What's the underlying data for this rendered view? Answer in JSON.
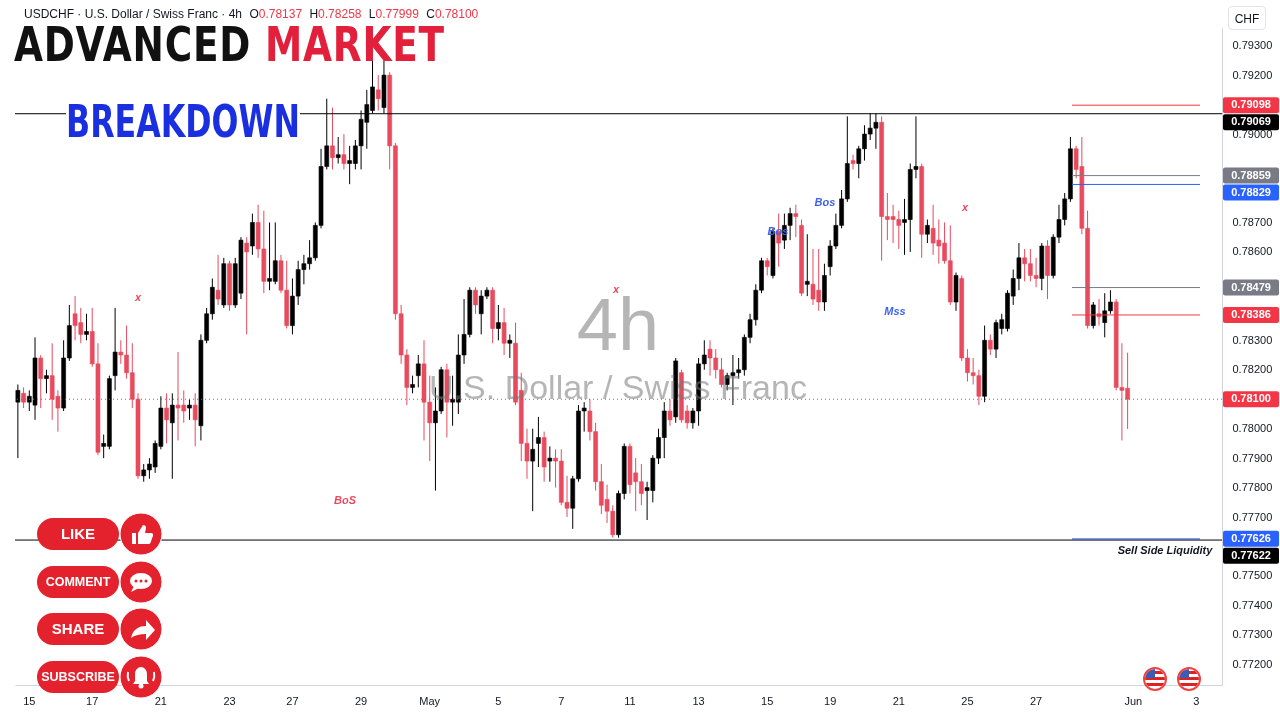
{
  "chart_data": {
    "type": "candlestick",
    "title": "ADVANCED MARKET BREAKDOWN",
    "subtitle": "USDCHF · U.S. Dollar / Swiss Franc · 4h",
    "ylabel": "CHF",
    "annotations": [
      "O0.78137 H0.78258 L0.77999 C0.78100",
      "4h",
      "U.S. Dollar / Swiss Franc",
      "LIKE",
      "COMMENT",
      "SHARE",
      "SUBSCRIBE",
      "BoS",
      "Mss",
      "Bos",
      "Bos",
      "Sell Side Liquidity",
      "x",
      "x",
      "x"
    ],
    "categories": [
      null,
      null,
      "15",
      null,
      null,
      null,
      null,
      null,
      null,
      null,
      null,
      null,
      null,
      "17",
      null,
      null,
      null,
      null,
      null,
      null,
      null,
      null,
      null,
      null,
      null,
      "21",
      null,
      null,
      null,
      null,
      null,
      null,
      null,
      null,
      null,
      null,
      null,
      "23",
      null,
      null,
      null,
      null,
      null,
      null,
      null,
      null,
      null,
      null,
      "27",
      null,
      null,
      null,
      null,
      null,
      null,
      null,
      null,
      null,
      null,
      null,
      "29",
      null,
      null,
      null,
      null,
      null,
      null,
      null,
      null,
      null,
      null,
      null,
      "May",
      null,
      null,
      null,
      null,
      null,
      null,
      null,
      null,
      null,
      null,
      null,
      "5",
      null,
      null,
      null,
      null,
      null,
      null,
      null,
      null,
      null,
      null,
      "7",
      null,
      null,
      null,
      null,
      null,
      null,
      null,
      null,
      null,
      null,
      null,
      "11",
      null,
      null,
      null,
      null,
      null,
      null,
      null,
      null,
      null,
      null,
      null,
      "13",
      null,
      null,
      null,
      null,
      null,
      null,
      null,
      null,
      null,
      null,
      null,
      "15",
      null,
      null,
      null,
      null,
      null,
      null,
      null,
      null,
      null,
      null,
      "19",
      null,
      null,
      null,
      null,
      null,
      null,
      null,
      null,
      null,
      null,
      null,
      "21",
      null,
      null,
      null,
      null,
      null,
      null,
      null,
      null,
      null,
      null,
      null,
      "25",
      null,
      null,
      null,
      null,
      null,
      null,
      null,
      null,
      null,
      null,
      null,
      "27",
      null,
      null,
      null,
      null,
      null,
      null,
      null,
      null,
      null,
      null,
      null,
      null,
      null,
      null,
      null,
      null,
      "Jun",
      null,
      null,
      null,
      null,
      null,
      null,
      null,
      null,
      null,
      null,
      "3",
      null,
      null,
      null,
      null
    ],
    "ylim": [
      0.7713,
      0.7936
    ],
    "yticks": [
      {
        "value": 0.772,
        "label": "0.77200"
      },
      {
        "value": 0.773,
        "label": "0.77300"
      },
      {
        "value": 0.774,
        "label": "0.77400"
      },
      {
        "value": 0.775,
        "label": "0.77500"
      },
      {
        "value": 0.777,
        "label": "0.77700"
      },
      {
        "value": 0.778,
        "label": "0.77800"
      },
      {
        "value": 0.779,
        "label": "0.77900"
      },
      {
        "value": 0.78,
        "label": "0.78000"
      },
      {
        "value": 0.782,
        "label": "0.78200"
      },
      {
        "value": 0.783,
        "label": "0.78300"
      },
      {
        "value": 0.786,
        "label": "0.78600"
      },
      {
        "value": 0.787,
        "label": "0.78700"
      },
      {
        "value": 0.79,
        "label": "0.79000"
      },
      {
        "value": 0.792,
        "label": "0.79200"
      },
      {
        "value": 0.793,
        "label": "0.79300"
      }
    ],
    "ref_lines": [
      {
        "axis": "y",
        "value": 0.79098,
        "label": "0.79098",
        "color": "#f23645"
      },
      {
        "axis": "y",
        "value": 0.79069,
        "label": "0.79069",
        "color": "#000000",
        "line_style": "solid"
      },
      {
        "axis": "y",
        "value": 0.78859,
        "label": "0.78859",
        "color": "#787b86"
      },
      {
        "axis": "y",
        "value": 0.78829,
        "label": "0.78829",
        "color": "#2962ff"
      },
      {
        "axis": "y",
        "value": 0.78479,
        "label": "0.78479",
        "color": "#787b86"
      },
      {
        "axis": "y",
        "value": 0.78386,
        "label": "0.78386",
        "color": "#f23645"
      },
      {
        "axis": "y",
        "value": 0.781,
        "label": "0.78100",
        "color": "#f23645",
        "line_style": "dotted"
      },
      {
        "axis": "y",
        "value": 0.77626,
        "label": "0.77626",
        "color": "#2962ff"
      },
      {
        "axis": "y",
        "value": 0.77622,
        "label": "0.77622",
        "color": "#000000",
        "line_style": "solid"
      }
    ],
    "ohlc": [
      [
        0.7809,
        0.7815,
        0.779,
        0.7813
      ],
      [
        0.7812,
        0.7814,
        0.7807,
        0.7809
      ],
      [
        0.7809,
        0.7813,
        0.7806,
        0.7811
      ],
      [
        0.7808,
        0.7831,
        0.7803,
        0.7824
      ],
      [
        0.7824,
        0.7825,
        0.7807,
        0.7817
      ],
      [
        0.7817,
        0.782,
        0.7812,
        0.7818
      ],
      [
        0.7818,
        0.7829,
        0.7803,
        0.781
      ],
      [
        0.7811,
        0.7813,
        0.7799,
        0.7807
      ],
      [
        0.7807,
        0.783,
        0.7806,
        0.7824
      ],
      [
        0.7824,
        0.7842,
        0.7823,
        0.7835
      ],
      [
        0.7839,
        0.7845,
        0.783,
        0.7835
      ],
      [
        0.7836,
        0.7841,
        0.7829,
        0.7832
      ],
      [
        0.7832,
        0.7839,
        0.783,
        0.7833
      ],
      [
        0.7833,
        0.7841,
        0.7821,
        0.7822
      ],
      [
        0.7822,
        0.7829,
        0.7791,
        0.7792
      ],
      [
        0.7794,
        0.7798,
        0.779,
        0.7795
      ],
      [
        0.7794,
        0.7818,
        0.7793,
        0.7817
      ],
      [
        0.7818,
        0.7841,
        0.7813,
        0.7826
      ],
      [
        0.7826,
        0.783,
        0.7822,
        0.7825
      ],
      [
        0.7825,
        0.7835,
        0.7817,
        0.7819
      ],
      [
        0.7819,
        0.7829,
        0.7807,
        0.781
      ],
      [
        0.781,
        0.7812,
        0.7783,
        0.7784
      ],
      [
        0.7784,
        0.7788,
        0.7782,
        0.7786
      ],
      [
        0.7786,
        0.779,
        0.7783,
        0.7788
      ],
      [
        0.7787,
        0.7796,
        0.7785,
        0.7795
      ],
      [
        0.7794,
        0.7811,
        0.7793,
        0.7807
      ],
      [
        0.7807,
        0.7812,
        0.7795,
        0.7803
      ],
      [
        0.7802,
        0.7812,
        0.7783,
        0.7808
      ],
      [
        0.7808,
        0.7826,
        0.7796,
        0.7807
      ],
      [
        0.7808,
        0.7813,
        0.7802,
        0.7806
      ],
      [
        0.7807,
        0.781,
        0.7803,
        0.7808
      ],
      [
        0.7808,
        0.7812,
        0.7794,
        0.7803
      ],
      [
        0.7801,
        0.7832,
        0.7796,
        0.783
      ],
      [
        0.783,
        0.7841,
        0.7829,
        0.7839
      ],
      [
        0.7839,
        0.7851,
        0.7837,
        0.7848
      ],
      [
        0.7847,
        0.7859,
        0.7842,
        0.7844
      ],
      [
        0.7842,
        0.7858,
        0.7841,
        0.7856
      ],
      [
        0.7856,
        0.7857,
        0.784,
        0.7842
      ],
      [
        0.7842,
        0.7858,
        0.7841,
        0.7856
      ],
      [
        0.7846,
        0.7865,
        0.7844,
        0.7864
      ],
      [
        0.7863,
        0.7865,
        0.7832,
        0.786
      ],
      [
        0.7862,
        0.7873,
        0.7859,
        0.787
      ],
      [
        0.787,
        0.7876,
        0.7858,
        0.7861
      ],
      [
        0.7861,
        0.7874,
        0.7846,
        0.785
      ],
      [
        0.785,
        0.787,
        0.7847,
        0.7851
      ],
      [
        0.785,
        0.787,
        0.7849,
        0.7857
      ],
      [
        0.7857,
        0.7859,
        0.7846,
        0.7847
      ],
      [
        0.7847,
        0.7857,
        0.7834,
        0.7835
      ],
      [
        0.7835,
        0.7851,
        0.7832,
        0.7845
      ],
      [
        0.7845,
        0.7857,
        0.7842,
        0.7854
      ],
      [
        0.7854,
        0.7859,
        0.7849,
        0.7856
      ],
      [
        0.7856,
        0.7864,
        0.7854,
        0.7858
      ],
      [
        0.7858,
        0.787,
        0.7857,
        0.7869
      ],
      [
        0.7869,
        0.7895,
        0.7868,
        0.7889
      ],
      [
        0.7889,
        0.7912,
        0.7888,
        0.7896
      ],
      [
        0.7896,
        0.7909,
        0.7888,
        0.7892
      ],
      [
        0.7892,
        0.7899,
        0.789,
        0.7893
      ],
      [
        0.7893,
        0.79,
        0.7888,
        0.789
      ],
      [
        0.789,
        0.7896,
        0.7883,
        0.7891
      ],
      [
        0.789,
        0.7898,
        0.7888,
        0.7896
      ],
      [
        0.7896,
        0.7908,
        0.7888,
        0.7905
      ],
      [
        0.7904,
        0.7915,
        0.7895,
        0.791
      ],
      [
        0.7908,
        0.7925,
        0.7907,
        0.7916
      ],
      [
        0.7915,
        0.792,
        0.7908,
        0.7912
      ],
      [
        0.7909,
        0.7925,
        0.7907,
        0.792
      ],
      [
        0.792,
        0.7921,
        0.7888,
        0.7896
      ],
      [
        0.7896,
        0.7897,
        0.7837,
        0.7839
      ],
      [
        0.7839,
        0.7842,
        0.7822,
        0.7825
      ],
      [
        0.7825,
        0.7827,
        0.7808,
        0.7814
      ],
      [
        0.7814,
        0.7818,
        0.7812,
        0.7815
      ],
      [
        0.7818,
        0.7825,
        0.7814,
        0.7822
      ],
      [
        0.7822,
        0.783,
        0.7796,
        0.7809
      ],
      [
        0.7809,
        0.7818,
        0.7789,
        0.7802
      ],
      [
        0.7802,
        0.7814,
        0.7779,
        0.7806
      ],
      [
        0.7806,
        0.7821,
        0.7805,
        0.782
      ],
      [
        0.782,
        0.7822,
        0.7797,
        0.7809
      ],
      [
        0.7809,
        0.7818,
        0.7801,
        0.781
      ],
      [
        0.7809,
        0.7832,
        0.7805,
        0.7825
      ],
      [
        0.7825,
        0.7844,
        0.7822,
        0.7832
      ],
      [
        0.7832,
        0.7848,
        0.7831,
        0.7847
      ],
      [
        0.7847,
        0.7848,
        0.7839,
        0.7842
      ],
      [
        0.7839,
        0.7847,
        0.7832,
        0.7845
      ],
      [
        0.7845,
        0.7848,
        0.7844,
        0.7847
      ],
      [
        0.7847,
        0.7848,
        0.7829,
        0.7834
      ],
      [
        0.7834,
        0.7842,
        0.783,
        0.7836
      ],
      [
        0.7836,
        0.7841,
        0.7825,
        0.7829
      ],
      [
        0.7829,
        0.7832,
        0.7824,
        0.783
      ],
      [
        0.7829,
        0.7836,
        0.7808,
        0.7809
      ],
      [
        0.7813,
        0.7819,
        0.7789,
        0.7795
      ],
      [
        0.7795,
        0.78,
        0.7783,
        0.7789
      ],
      [
        0.7789,
        0.78,
        0.7772,
        0.7793
      ],
      [
        0.7795,
        0.7804,
        0.7787,
        0.7797
      ],
      [
        0.7797,
        0.7799,
        0.7782,
        0.7787
      ],
      [
        0.7789,
        0.7794,
        0.7782,
        0.779
      ],
      [
        0.779,
        0.7793,
        0.778,
        0.7789
      ],
      [
        0.7789,
        0.7793,
        0.7774,
        0.7775
      ],
      [
        0.7775,
        0.7784,
        0.777,
        0.7773
      ],
      [
        0.7773,
        0.7784,
        0.7766,
        0.7783
      ],
      [
        0.7783,
        0.7808,
        0.7782,
        0.7806
      ],
      [
        0.7806,
        0.7809,
        0.7799,
        0.7807
      ],
      [
        0.7806,
        0.781,
        0.7796,
        0.7799
      ],
      [
        0.7799,
        0.7802,
        0.7779,
        0.7782
      ],
      [
        0.7782,
        0.7788,
        0.7771,
        0.7774
      ],
      [
        0.7776,
        0.7781,
        0.7768,
        0.7772
      ],
      [
        0.7772,
        0.7774,
        0.7763,
        0.7764
      ],
      [
        0.7764,
        0.7779,
        0.7763,
        0.7778
      ],
      [
        0.7778,
        0.7795,
        0.7776,
        0.7794
      ],
      [
        0.7794,
        0.7795,
        0.7778,
        0.7781
      ],
      [
        0.7785,
        0.779,
        0.7772,
        0.7782
      ],
      [
        0.7782,
        0.7788,
        0.7774,
        0.7778
      ],
      [
        0.7779,
        0.7782,
        0.7769,
        0.778
      ],
      [
        0.7779,
        0.7791,
        0.7775,
        0.779
      ],
      [
        0.779,
        0.78,
        0.7788,
        0.7797
      ],
      [
        0.7797,
        0.7809,
        0.779,
        0.7806
      ],
      [
        0.7806,
        0.781,
        0.7801,
        0.7803
      ],
      [
        0.7804,
        0.7824,
        0.7802,
        0.7823
      ],
      [
        0.7819,
        0.782,
        0.7802,
        0.7803
      ],
      [
        0.7806,
        0.7808,
        0.78,
        0.7802
      ],
      [
        0.7802,
        0.7807,
        0.78,
        0.7806
      ],
      [
        0.7806,
        0.7824,
        0.7801,
        0.7822
      ],
      [
        0.7822,
        0.783,
        0.782,
        0.7825
      ],
      [
        0.7827,
        0.783,
        0.7818,
        0.7824
      ],
      [
        0.7824,
        0.7827,
        0.7817,
        0.782
      ],
      [
        0.782,
        0.7824,
        0.7814,
        0.7815
      ],
      [
        0.7815,
        0.7819,
        0.7813,
        0.7818
      ],
      [
        0.7818,
        0.7825,
        0.7808,
        0.7819
      ],
      [
        0.7819,
        0.7824,
        0.7817,
        0.782
      ],
      [
        0.782,
        0.7832,
        0.7818,
        0.7831
      ],
      [
        0.7831,
        0.7839,
        0.7829,
        0.7837
      ],
      [
        0.7837,
        0.7849,
        0.7835,
        0.7847
      ],
      [
        0.7847,
        0.7858,
        0.7846,
        0.7857
      ],
      [
        0.7857,
        0.7858,
        0.7852,
        0.7855
      ],
      [
        0.7852,
        0.7868,
        0.7851,
        0.7867
      ],
      [
        0.7867,
        0.7873,
        0.7855,
        0.7863
      ],
      [
        0.7864,
        0.7873,
        0.7861,
        0.7869
      ],
      [
        0.7869,
        0.7875,
        0.7864,
        0.7873
      ],
      [
        0.7873,
        0.7876,
        0.7865,
        0.7872
      ],
      [
        0.7869,
        0.7871,
        0.7845,
        0.7846
      ],
      [
        0.7849,
        0.7866,
        0.7845,
        0.785
      ],
      [
        0.7849,
        0.7861,
        0.7842,
        0.7844
      ],
      [
        0.7847,
        0.7861,
        0.784,
        0.7843
      ],
      [
        0.7843,
        0.7856,
        0.784,
        0.7852
      ],
      [
        0.7855,
        0.7864,
        0.7852,
        0.7862
      ],
      [
        0.7862,
        0.7873,
        0.7861,
        0.7869
      ],
      [
        0.7869,
        0.7881,
        0.7868,
        0.7878
      ],
      [
        0.7878,
        0.7906,
        0.7877,
        0.789
      ],
      [
        0.7891,
        0.7893,
        0.7888,
        0.789
      ],
      [
        0.789,
        0.7896,
        0.7885,
        0.7895
      ],
      [
        0.7895,
        0.7903,
        0.7891,
        0.79
      ],
      [
        0.79,
        0.7907,
        0.7898,
        0.7902
      ],
      [
        0.7902,
        0.7907,
        0.7895,
        0.7904
      ],
      [
        0.7904,
        0.7906,
        0.7857,
        0.7872
      ],
      [
        0.7872,
        0.788,
        0.7864,
        0.7871
      ],
      [
        0.7872,
        0.7876,
        0.7863,
        0.7871
      ],
      [
        0.7871,
        0.7874,
        0.7861,
        0.7869
      ],
      [
        0.787,
        0.7878,
        0.7859,
        0.7871
      ],
      [
        0.7871,
        0.789,
        0.786,
        0.7888
      ],
      [
        0.7888,
        0.7906,
        0.7885,
        0.7889
      ],
      [
        0.7889,
        0.789,
        0.7858,
        0.7866
      ],
      [
        0.7866,
        0.7871,
        0.7863,
        0.7869
      ],
      [
        0.7868,
        0.7876,
        0.7859,
        0.7863
      ],
      [
        0.7864,
        0.7871,
        0.7856,
        0.7862
      ],
      [
        0.7863,
        0.787,
        0.7856,
        0.7857
      ],
      [
        0.7857,
        0.7869,
        0.7842,
        0.7843
      ],
      [
        0.7843,
        0.7853,
        0.784,
        0.7852
      ],
      [
        0.7851,
        0.7852,
        0.7823,
        0.7824
      ],
      [
        0.7824,
        0.7827,
        0.7816,
        0.7819
      ],
      [
        0.7819,
        0.7824,
        0.7815,
        0.7818
      ],
      [
        0.7818,
        0.782,
        0.7808,
        0.7811
      ],
      [
        0.7811,
        0.7835,
        0.7809,
        0.783
      ],
      [
        0.783,
        0.7832,
        0.7825,
        0.7827
      ],
      [
        0.7827,
        0.7837,
        0.7824,
        0.7836
      ],
      [
        0.7834,
        0.7839,
        0.7832,
        0.7837
      ],
      [
        0.7834,
        0.7847,
        0.7833,
        0.7846
      ],
      [
        0.7845,
        0.7854,
        0.7842,
        0.7851
      ],
      [
        0.7851,
        0.7863,
        0.7847,
        0.7858
      ],
      [
        0.7858,
        0.7861,
        0.785,
        0.7856
      ],
      [
        0.7856,
        0.7861,
        0.785,
        0.7852
      ],
      [
        0.7852,
        0.7858,
        0.7848,
        0.7851
      ],
      [
        0.7851,
        0.7863,
        0.7847,
        0.7862
      ],
      [
        0.7862,
        0.7864,
        0.7844,
        0.7852
      ],
      [
        0.7852,
        0.7866,
        0.7851,
        0.7865
      ],
      [
        0.7865,
        0.7876,
        0.7863,
        0.7871
      ],
      [
        0.7871,
        0.788,
        0.7869,
        0.7878
      ],
      [
        0.7878,
        0.7899,
        0.7877,
        0.7895
      ],
      [
        0.7895,
        0.7896,
        0.7885,
        0.7888
      ],
      [
        0.7889,
        0.7899,
        0.7866,
        0.7868
      ],
      [
        0.7868,
        0.7874,
        0.7834,
        0.7835
      ],
      [
        0.7835,
        0.7843,
        0.7834,
        0.7842
      ],
      [
        0.7839,
        0.7844,
        0.7835,
        0.7838
      ],
      [
        0.7836,
        0.7846,
        0.7831,
        0.784
      ],
      [
        0.784,
        0.7847,
        0.7839,
        0.7843
      ],
      [
        0.7843,
        0.7844,
        0.7813,
        0.7814
      ],
      [
        0.7814,
        0.7829,
        0.7796,
        0.7813
      ],
      [
        0.78137,
        0.78258,
        0.77999,
        0.781
      ],
      null,
      null,
      null,
      null,
      null,
      null,
      null,
      null,
      null,
      null,
      null,
      null,
      null,
      null,
      null,
      null
    ],
    "colors": [
      "#000000",
      "#e84a5e",
      "#000000",
      "#000000",
      "#e84a5e",
      "#000000",
      "#e84a5e",
      "#e84a5e",
      "#000000",
      "#000000",
      "#e84a5e",
      "#e84a5e",
      "#000000",
      "#e84a5e",
      "#e84a5e",
      "#000000",
      "#000000",
      "#000000",
      "#e84a5e",
      "#e84a5e",
      "#e84a5e",
      "#e84a5e",
      "#000000",
      "#000000",
      "#000000",
      "#000000",
      "#e84a5e",
      "#000000",
      "#e84a5e",
      "#e84a5e",
      "#000000",
      "#e84a5e",
      "#000000",
      "#000000",
      "#000000",
      "#e84a5e",
      "#000000",
      "#e84a5e",
      "#000000",
      "#000000",
      "#e84a5e",
      "#000000",
      "#e84a5e",
      "#e84a5e",
      "#000000",
      "#000000",
      "#e84a5e",
      "#e84a5e",
      "#000000",
      "#000000",
      "#000000",
      "#000000",
      "#000000",
      "#000000",
      "#000000",
      "#e84a5e",
      "#000000",
      "#e84a5e",
      "#000000",
      "#000000",
      "#000000",
      "#000000",
      "#000000",
      "#e84a5e",
      "#000000",
      "#e84a5e",
      "#e84a5e",
      "#e84a5e",
      "#e84a5e",
      "#000000",
      "#000000",
      "#e84a5e",
      "#e84a5e",
      "#000000",
      "#000000",
      "#e84a5e",
      "#000000",
      "#000000",
      "#000000",
      "#000000",
      "#e84a5e",
      "#000000",
      "#000000",
      "#e84a5e",
      "#000000",
      "#e84a5e",
      "#000000",
      "#e84a5e",
      "#e84a5e",
      "#e84a5e",
      "#000000",
      "#000000",
      "#e84a5e",
      "#000000",
      "#e84a5e",
      "#e84a5e",
      "#e84a5e",
      "#000000",
      "#000000",
      "#000000",
      "#e84a5e",
      "#e84a5e",
      "#e84a5e",
      "#e84a5e",
      "#e84a5e",
      "#000000",
      "#000000",
      "#e84a5e",
      "#e84a5e",
      "#e84a5e",
      "#000000",
      "#000000",
      "#000000",
      "#000000",
      "#e84a5e",
      "#000000",
      "#e84a5e",
      "#e84a5e",
      "#000000",
      "#000000",
      "#000000",
      "#e84a5e",
      "#e84a5e",
      "#e84a5e",
      "#000000",
      "#000000",
      "#000000",
      "#000000",
      "#000000",
      "#000000",
      "#000000",
      "#e84a5e",
      "#000000",
      "#e84a5e",
      "#000000",
      "#000000",
      "#e84a5e",
      "#e84a5e",
      "#000000",
      "#e84a5e",
      "#e84a5e",
      "#000000",
      "#000000",
      "#000000",
      "#000000",
      "#000000",
      "#e84a5e",
      "#000000",
      "#000000",
      "#000000",
      "#000000",
      "#e84a5e",
      "#e84a5e",
      "#e84a5e",
      "#e84a5e",
      "#000000",
      "#000000",
      "#000000",
      "#e84a5e",
      "#000000",
      "#e84a5e",
      "#e84a5e",
      "#e84a5e",
      "#e84a5e",
      "#000000",
      "#e84a5e",
      "#e84a5e",
      "#e84a5e",
      "#e84a5e",
      "#000000",
      "#e84a5e",
      "#000000",
      "#000000",
      "#000000",
      "#000000",
      "#000000",
      "#e84a5e",
      "#e84a5e",
      "#e84a5e",
      "#000000",
      "#e84a5e",
      "#000000",
      "#000000",
      "#000000",
      "#000000",
      "#e84a5e",
      "#e84a5e",
      "#e84a5e",
      "#000000",
      "#e84a5e",
      "#000000",
      "#000000",
      "#e84a5e",
      "#e84a5e",
      "#e84a5e",
      null,
      null,
      null,
      null,
      null,
      null,
      null,
      null,
      null,
      null,
      null,
      null,
      null,
      null,
      null,
      null
    ]
  }
}
